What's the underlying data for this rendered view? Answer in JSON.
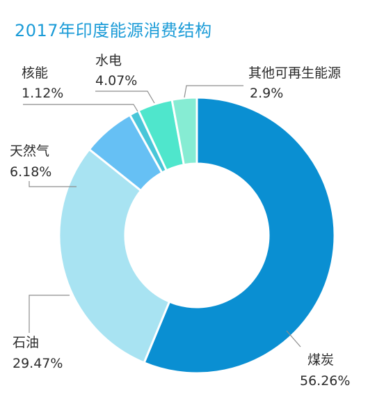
{
  "chart_data": {
    "type": "pie",
    "title": "2017年印度能源消费结构",
    "slices": [
      {
        "name": "煤炭",
        "value": 56.26,
        "label": "56.26%",
        "color": "#0a8fd2"
      },
      {
        "name": "石油",
        "value": 29.47,
        "label": "29.47%",
        "color": "#a8e3f2"
      },
      {
        "name": "天然气",
        "value": 6.18,
        "label": "6.18%",
        "color": "#66c0f4"
      },
      {
        "name": "核能",
        "value": 1.12,
        "label": "1.12%",
        "color": "#49c6d8"
      },
      {
        "name": "水电",
        "value": 4.07,
        "label": "4.07%",
        "color": "#4fe6cc"
      },
      {
        "name": "其他可再生能源",
        "value": 2.9,
        "label": "2.9%",
        "color": "#86ecd3"
      }
    ]
  }
}
